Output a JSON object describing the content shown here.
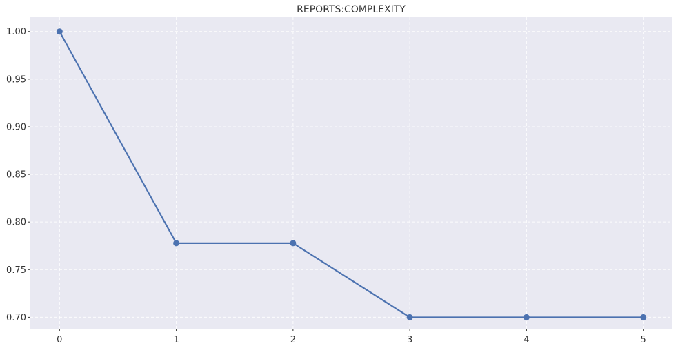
{
  "chart_data": {
    "type": "line",
    "title": "REPORTS:COMPLEXITY",
    "xlabel": "",
    "ylabel": "",
    "x": [
      0,
      1,
      2,
      3,
      4,
      5
    ],
    "series": [
      {
        "values": [
          1.0,
          0.7778,
          0.7778,
          0.7,
          0.7,
          0.7
        ]
      }
    ],
    "xlim": [
      -0.25,
      5.25
    ],
    "ylim": [
      0.688,
      1.015
    ],
    "xticks": [
      0,
      1,
      2,
      3,
      4,
      5
    ],
    "xtick_labels": [
      "0",
      "1",
      "2",
      "3",
      "4",
      "5"
    ],
    "yticks": [
      0.7,
      0.75,
      0.8,
      0.85,
      0.9,
      0.95,
      1.0
    ],
    "ytick_labels": [
      "0.70",
      "0.75",
      "0.80",
      "0.85",
      "0.90",
      "0.95",
      "1.00"
    ],
    "grid": true,
    "colors": {
      "plot_background": "#e9e9f2",
      "series": "#4c72b0"
    }
  }
}
